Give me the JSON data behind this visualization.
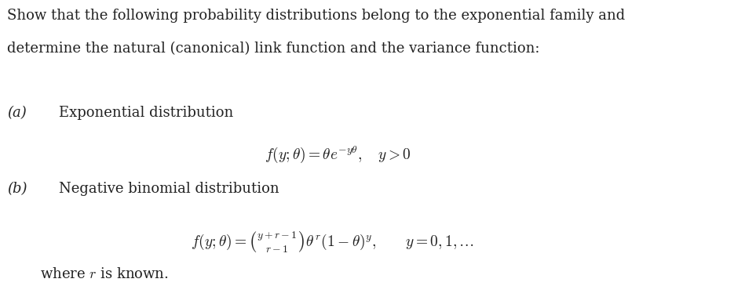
{
  "bg_color": "#ffffff",
  "fig_width": 9.35,
  "fig_height": 3.65,
  "dpi": 100,
  "intro_line1": "Show that the following probability distributions belong to the exponential family and",
  "intro_line2": "determine the natural (canonical) link function and the variance function:",
  "part_a_label": "(a)",
  "part_a_text": "Exponential distribution",
  "part_a_formula": "$f(y;\\theta) = \\theta e^{-y\\theta}, \\quad y > 0$",
  "part_b_label": "(b)",
  "part_b_text": "Negative binomial distribution",
  "part_b_formula": "$f(y;\\theta) = \\binom{y+r-1}{r-1}\\theta^r(1-\\theta)^y, \\qquad y = 0,1,\\ldots$",
  "footer_text": "where $r$ is known.",
  "font_family": "serif",
  "text_color": "#222222",
  "label_fontsize": 13,
  "body_fontsize": 13,
  "formula_fontsize": 14
}
